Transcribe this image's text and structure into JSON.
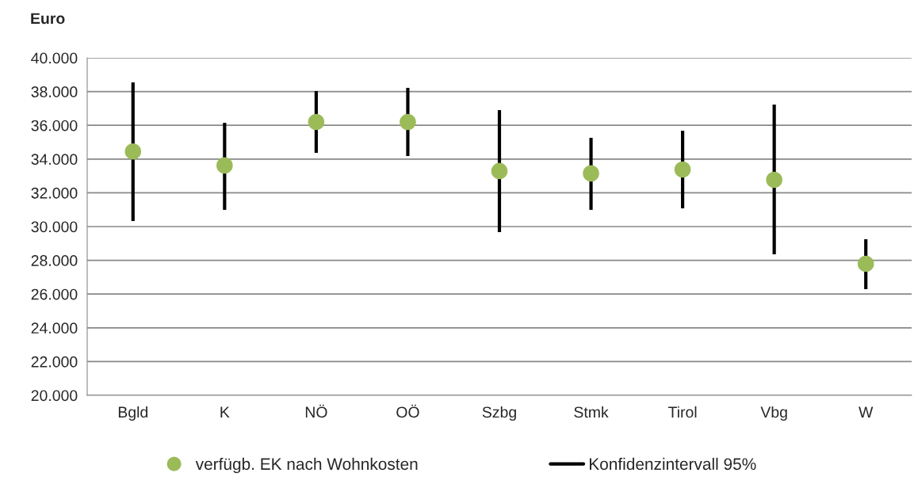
{
  "chart_data": {
    "type": "scatter",
    "ylabel": "Euro",
    "categories": [
      "Bgld",
      "K",
      "NÖ",
      "OÖ",
      "Szbg",
      "Stmk",
      "Tirol",
      "Vbg",
      "W"
    ],
    "series": [
      {
        "name": "verfügb. EK nach Wohnkosten",
        "color": "#9bbb59",
        "values": [
          34450,
          33620,
          36200,
          36200,
          33290,
          33150,
          33380,
          32770,
          27790
        ],
        "errors": [
          [
            30330,
            38540
          ],
          [
            30990,
            36150
          ],
          [
            34370,
            38030
          ],
          [
            34180,
            38220
          ],
          [
            29670,
            36900
          ],
          [
            30990,
            35260
          ],
          [
            31080,
            35680
          ],
          [
            28360,
            37230
          ],
          [
            26290,
            29250
          ]
        ]
      }
    ],
    "annotations": [
      "Konfidenzintervall 95%"
    ],
    "ylim": [
      20000,
      40000
    ],
    "yticks": [
      {
        "value": 20000,
        "label": "20.000"
      },
      {
        "value": 22000,
        "label": "22.000"
      },
      {
        "value": 24000,
        "label": "24.000"
      },
      {
        "value": 26000,
        "label": "26.000"
      },
      {
        "value": 28000,
        "label": "28.000"
      },
      {
        "value": 30000,
        "label": "30.000"
      },
      {
        "value": 32000,
        "label": "32.000"
      },
      {
        "value": 34000,
        "label": "34.000"
      },
      {
        "value": 36000,
        "label": "36.000"
      },
      {
        "value": 38000,
        "label": "38.000"
      },
      {
        "value": 40000,
        "label": "40.000"
      }
    ],
    "grid": "y",
    "legend": "bottom",
    "marker": "circle"
  }
}
